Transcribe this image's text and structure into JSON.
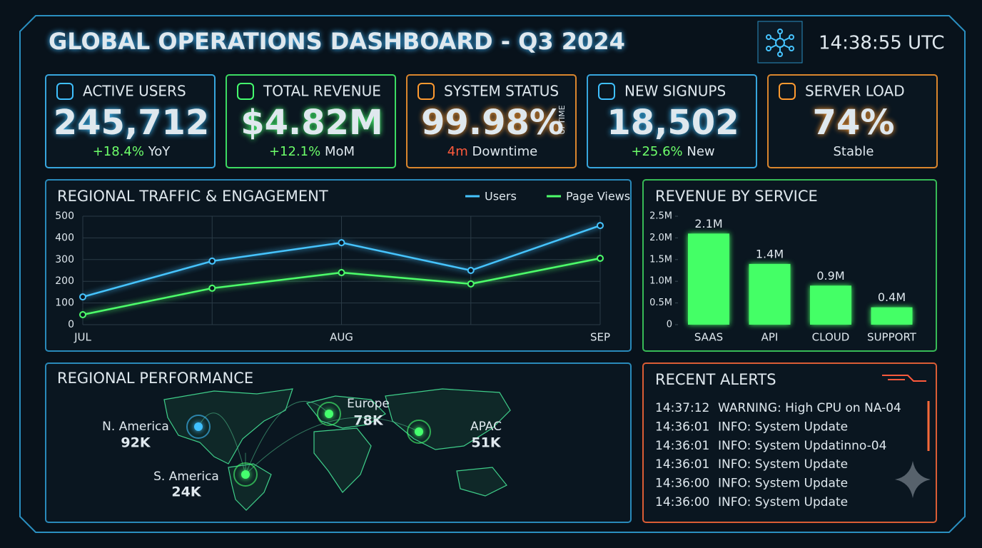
{
  "header": {
    "title": "GLOBAL OPERATIONS DASHBOARD - Q3 2024",
    "time": "14:38:55 UTC"
  },
  "kpis": [
    {
      "label": "ACTIVE USERS",
      "value": "245,712",
      "change": "+18.4%",
      "suffix": "YoY",
      "color": "#3fc0ff"
    },
    {
      "label": "TOTAL REVENUE",
      "value": "$4.82M",
      "change": "+12.1%",
      "suffix": "MoM",
      "color": "#45ff6e"
    },
    {
      "label": "SYSTEM STATUS",
      "value": "99.98%",
      "side": "UPTIME",
      "change": "4m",
      "suffix": "Downtime",
      "color": "#ff9a30"
    },
    {
      "label": "NEW SIGNUPS",
      "value": "18,502",
      "change": "+25.6%",
      "suffix": "New",
      "color": "#3fc0ff"
    },
    {
      "label": "SERVER LOAD",
      "value": "74%",
      "suffix": "Stable",
      "color": "#ff9a30"
    }
  ],
  "regional_traffic": {
    "type": "line",
    "title": "REGIONAL TRAFFIC & ENGAGEMENT",
    "categories": [
      "JUL",
      null,
      "AUG",
      null,
      "SEP"
    ],
    "series": [
      {
        "name": "Users",
        "color": "#46c4ff",
        "values": [
          128,
          293,
          378,
          250,
          457
        ]
      },
      {
        "name": "Page Views",
        "color": "#4dff6a",
        "values": [
          46,
          168,
          240,
          188,
          306
        ]
      }
    ],
    "ylim": [
      0,
      500
    ],
    "yticks": [
      0,
      100,
      200,
      300,
      400,
      500
    ],
    "grid": true
  },
  "revenue_by_service": {
    "type": "bar",
    "title": "REVENUE BY SERVICE",
    "categories": [
      "SAAS",
      "API",
      "CLOUD",
      "SUPPORT"
    ],
    "values": [
      2.1,
      1.4,
      0.9,
      0.4
    ],
    "value_labels": [
      "2.1M",
      "1.4M",
      "0.9M",
      "0.4M"
    ],
    "color": "#44ff66",
    "ylim": [
      0,
      2.5
    ],
    "yticks": [
      0,
      {
        "value": 0.5,
        "label": "0.5M"
      },
      {
        "value": 1,
        "label": "1.0M"
      },
      {
        "value": 1.5,
        "label": "1.5M"
      },
      {
        "value": 2,
        "label": "2.0M"
      },
      {
        "value": 2.5,
        "label": "2.5M"
      }
    ]
  },
  "regional_performance": {
    "title": "REGIONAL PERFORMANCE",
    "regions": [
      {
        "name": "N. America",
        "value": "92K",
        "color": "#3fc0ff"
      },
      {
        "name": "Europe",
        "value": "78K",
        "color": "#45ff6e"
      },
      {
        "name": "APAC",
        "value": "51K",
        "color": "#45ff6e"
      },
      {
        "name": "S. America",
        "value": "24K",
        "color": "#45ff6e"
      }
    ]
  },
  "recent_alerts": {
    "title": "RECENT ALERTS",
    "rows": [
      {
        "time": "14:37:12",
        "message": "WARNING: High CPU on NA-04",
        "color": "#ff5a3c"
      },
      {
        "time": "14:36:01",
        "message": "INFO: System Update",
        "color": "#6dff6a"
      },
      {
        "time": "14:36:01",
        "message": "INFO: System Updatinno-04",
        "color": "#ff5a3c"
      },
      {
        "time": "14:36:01",
        "message": "INFO: System Update",
        "color": "#6dff6a"
      },
      {
        "time": "14:36:00",
        "message": "INFO: System Update",
        "color": "#ff5a3c"
      },
      {
        "time": "14:36:00",
        "message": "INFO: System Update",
        "color": "#6dff6a"
      }
    ]
  }
}
